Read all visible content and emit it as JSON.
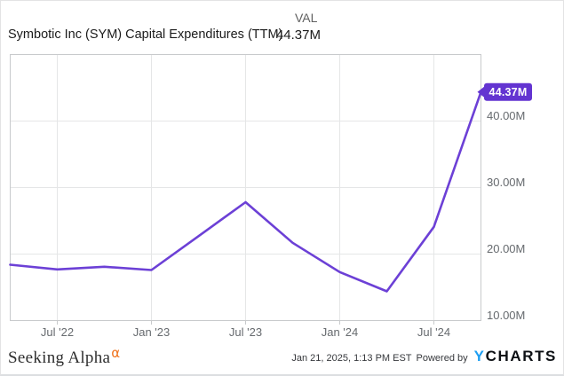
{
  "header": {
    "title": "Symbotic Inc (SYM) Capital Expenditures (TTM)",
    "val_label": "VAL",
    "val_value": "44.37M"
  },
  "chart_data": {
    "type": "line",
    "title": "Symbotic Inc (SYM) Capital Expenditures (TTM)",
    "series_name": "Capital Expenditures (TTM)",
    "unit": "USD millions",
    "x": [
      "Mar '22",
      "Jun '22",
      "Sep '22",
      "Dec '22",
      "Mar '23",
      "Jun '23",
      "Sep '23",
      "Dec '23",
      "Mar '24",
      "Jun '24",
      "Sep '24"
    ],
    "values": [
      18.4,
      17.7,
      18.1,
      17.6,
      22.7,
      27.8,
      21.7,
      17.3,
      14.4,
      24.1,
      44.37
    ],
    "last_value_label": "44.37M",
    "ylim": [
      10,
      50
    ],
    "y_tick_values": [
      40,
      30,
      20,
      10
    ],
    "y_tick_labels": [
      "40.00M",
      "30.00M",
      "20.00M",
      "10.00M"
    ],
    "x_tick_labels": [
      "Jul '22",
      "Jan '23",
      "Jul '23",
      "Jan '24",
      "Jul '24"
    ],
    "grid": true,
    "legend": false,
    "line_color": "#6c40d6",
    "badge_color": "#6334d1",
    "grid_color": "#e5e6e7",
    "border_color": "#c8cacc"
  },
  "footer": {
    "brand": "Seeking Alpha",
    "brand_sup": "α",
    "alpha_color": "#f0731d",
    "timestamp": "Jan 21, 2025, 1:13 PM EST",
    "powered_by": "Powered by",
    "logo_y": "Y",
    "logo_rest": "CHARTS",
    "logo_y_color": "#1e9ff2"
  }
}
